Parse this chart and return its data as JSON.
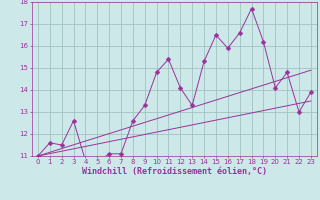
{
  "xlabel": "Windchill (Refroidissement éolien,°C)",
  "background_color": "#cce8e8",
  "line_color": "#993399",
  "markersize": 2.5,
  "x": [
    0,
    1,
    2,
    3,
    4,
    5,
    6,
    7,
    8,
    9,
    10,
    11,
    12,
    13,
    14,
    15,
    16,
    17,
    18,
    19,
    20,
    21,
    22,
    23
  ],
  "y_main": [
    11.0,
    11.6,
    11.5,
    12.6,
    10.8,
    10.7,
    11.1,
    11.1,
    12.6,
    13.3,
    14.8,
    15.4,
    14.1,
    13.3,
    15.3,
    16.5,
    15.9,
    16.6,
    17.7,
    16.2,
    14.1,
    14.8,
    13.0,
    13.9
  ],
  "line1_start": 11.0,
  "line1_end": 14.9,
  "line2_start": 11.0,
  "line2_end": 13.5,
  "ylim": [
    11,
    18
  ],
  "xlim": [
    -0.5,
    23.5
  ],
  "yticks": [
    11,
    12,
    13,
    14,
    15,
    16,
    17,
    18
  ],
  "xticks": [
    0,
    1,
    2,
    3,
    4,
    5,
    6,
    7,
    8,
    9,
    10,
    11,
    12,
    13,
    14,
    15,
    16,
    17,
    18,
    19,
    20,
    21,
    22,
    23
  ],
  "grid_color": "#99bbbb",
  "font_color": "#993399",
  "tick_fontsize": 5.0,
  "label_fontsize": 6.0
}
